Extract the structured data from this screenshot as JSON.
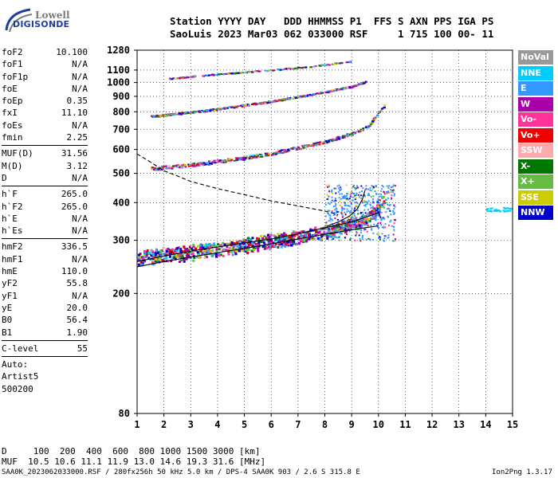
{
  "logo": {
    "line1": "Lowell",
    "line2": "DIGISONDE"
  },
  "header": {
    "line1": "Station YYYY DAY   DDD HHMMSS P1  FFS S AXN PPS IGA PS",
    "line2": "SaoLuis 2023 Mar03 062 033000 RSF     1 715 100 00- 11"
  },
  "params": {
    "group1": [
      {
        "k": "foF2",
        "v": "10.100"
      },
      {
        "k": "foF1",
        "v": "N/A"
      },
      {
        "k": "foF1p",
        "v": "N/A"
      },
      {
        "k": "foE",
        "v": "N/A"
      },
      {
        "k": "foEp",
        "v": "0.35"
      },
      {
        "k": "fxI",
        "v": "11.10"
      },
      {
        "k": "foEs",
        "v": "N/A"
      },
      {
        "k": "fmin",
        "v": "2.25"
      }
    ],
    "group2": [
      {
        "k": "MUF(D)",
        "v": "31.56"
      },
      {
        "k": "M(D)",
        "v": "3.12"
      },
      {
        "k": "D",
        "v": "N/A"
      }
    ],
    "group3": [
      {
        "k": "h`F",
        "v": "265.0"
      },
      {
        "k": "h`F2",
        "v": "265.0"
      },
      {
        "k": "h`E",
        "v": "N/A"
      },
      {
        "k": "h`Es",
        "v": "N/A"
      }
    ],
    "group4": [
      {
        "k": "hmF2",
        "v": "336.5"
      },
      {
        "k": "hmF1",
        "v": "N/A"
      },
      {
        "k": "hmE",
        "v": "110.0"
      },
      {
        "k": "yF2",
        "v": "55.8"
      },
      {
        "k": "yF1",
        "v": "N/A"
      },
      {
        "k": "yE",
        "v": "20.0"
      },
      {
        "k": "B0",
        "v": "56.4"
      },
      {
        "k": "B1",
        "v": "1.90"
      }
    ],
    "clevel": {
      "k": "C-level",
      "v": "55"
    },
    "footer": [
      "Auto:",
      "Artist5",
      "500200"
    ]
  },
  "legend": [
    {
      "label": "NoVal",
      "bg": "#999999",
      "fg": "#ffffff"
    },
    {
      "label": "NNE",
      "bg": "#00ccff",
      "fg": "#ffffff"
    },
    {
      "label": "E",
      "bg": "#3399ff",
      "fg": "#ffffff"
    },
    {
      "label": "W",
      "bg": "#aa00aa",
      "fg": "#ffffff"
    },
    {
      "label": "Vo-",
      "bg": "#ff3399",
      "fg": "#ffffff"
    },
    {
      "label": "Vo+",
      "bg": "#ee0000",
      "fg": "#ffffff"
    },
    {
      "label": "SSW",
      "bg": "#ffaaaa",
      "fg": "#ffffff"
    },
    {
      "label": "X-",
      "bg": "#007700",
      "fg": "#ffffff"
    },
    {
      "label": "X+",
      "bg": "#66bb44",
      "fg": "#ffffff"
    },
    {
      "label": "SSE",
      "bg": "#cccc00",
      "fg": "#ffffff"
    },
    {
      "label": "NNW",
      "bg": "#0000cc",
      "fg": "#ffffff"
    }
  ],
  "bottom": {
    "d_row": "D     100  200  400  600  800 1000 1500 3000 [km]",
    "muf_row": "MUF  10.5 10.6 11.1 11.9 13.0 14.6 19.3 31.6 [MHz]",
    "file_info": "SAA0K_2023062033000.RSF / 280fx256h 50 kHz 5.0 km / DPS-4 SAA0K 903 / 2.6 S 315.8 E",
    "version": "Ion2Png 1.3.17"
  },
  "chart_data": {
    "type": "scatter",
    "title": "",
    "xlabel": "",
    "ylabel": "",
    "xlim": [
      1,
      15
    ],
    "ylim": [
      80,
      1280
    ],
    "yscale": "log",
    "x_ticks": [
      1,
      2,
      3,
      4,
      5,
      6,
      7,
      8,
      9,
      10,
      11,
      12,
      13,
      14,
      15
    ],
    "y_ticks": [
      80,
      200,
      300,
      400,
      500,
      600,
      700,
      800,
      900,
      1000,
      1100,
      1280
    ],
    "grid": true,
    "series": [
      {
        "color": "#000000",
        "style": "solid",
        "x": [
          1.0,
          2.0,
          3.0,
          4.0,
          5.0,
          6.0,
          7.0,
          8.0,
          9.0,
          10.0
        ],
        "y": [
          245,
          255,
          264,
          273,
          282,
          292,
          303,
          314,
          325,
          335
        ]
      },
      {
        "color": "#000000",
        "style": "solid",
        "x": [
          1.0,
          2.0,
          3.0,
          4.0,
          5.0,
          6.0,
          7.0,
          8.0,
          9.0,
          10.0,
          10.1
        ],
        "y": [
          255,
          266,
          276,
          285,
          294,
          303,
          315,
          330,
          345,
          370,
          355
        ]
      },
      {
        "color": "#000000",
        "style": "dashed",
        "x": [
          1.0,
          1.5,
          2.0,
          2.5,
          3.0,
          4.0,
          5.0,
          6.0,
          7.0,
          8.0,
          8.5
        ],
        "y": [
          580,
          545,
          510,
          490,
          470,
          445,
          425,
          405,
          390,
          375,
          365
        ]
      },
      {
        "color": "#000000",
        "style": "solid",
        "x": [
          8.1,
          8.5,
          8.9,
          9.2,
          9.4,
          9.5
        ],
        "y": [
          335,
          345,
          360,
          380,
          410,
          440
        ]
      }
    ],
    "traces": [
      {
        "name": "F2 O-trace",
        "x": [
          1.0,
          2.0,
          3.0,
          4.0,
          5.0,
          6.0,
          7.0,
          8.0,
          9.0,
          9.6,
          10.0,
          10.2
        ],
        "y": [
          265,
          270,
          275,
          282,
          290,
          300,
          310,
          322,
          340,
          360,
          385,
          420
        ]
      },
      {
        "name": "F2 2nd hop",
        "x": [
          1.5,
          3.0,
          4.0,
          5.0,
          6.0,
          7.0,
          8.0,
          9.0,
          9.6,
          10.2
        ],
        "y": [
          520,
          535,
          550,
          565,
          585,
          610,
          640,
          680,
          720,
          840
        ]
      },
      {
        "name": "F2 3rd hop",
        "x": [
          1.5,
          3.0,
          4.0,
          5.0,
          6.0,
          7.0,
          8.0,
          9.0,
          9.5
        ],
        "y": [
          775,
          800,
          820,
          845,
          870,
          900,
          935,
          975,
          1010
        ]
      },
      {
        "name": "F2 4th hop",
        "x": [
          2.0,
          4.0,
          6.0,
          7.5,
          8.5,
          9.0
        ],
        "y": [
          1030,
          1070,
          1105,
          1135,
          1165,
          1180
        ]
      }
    ]
  }
}
